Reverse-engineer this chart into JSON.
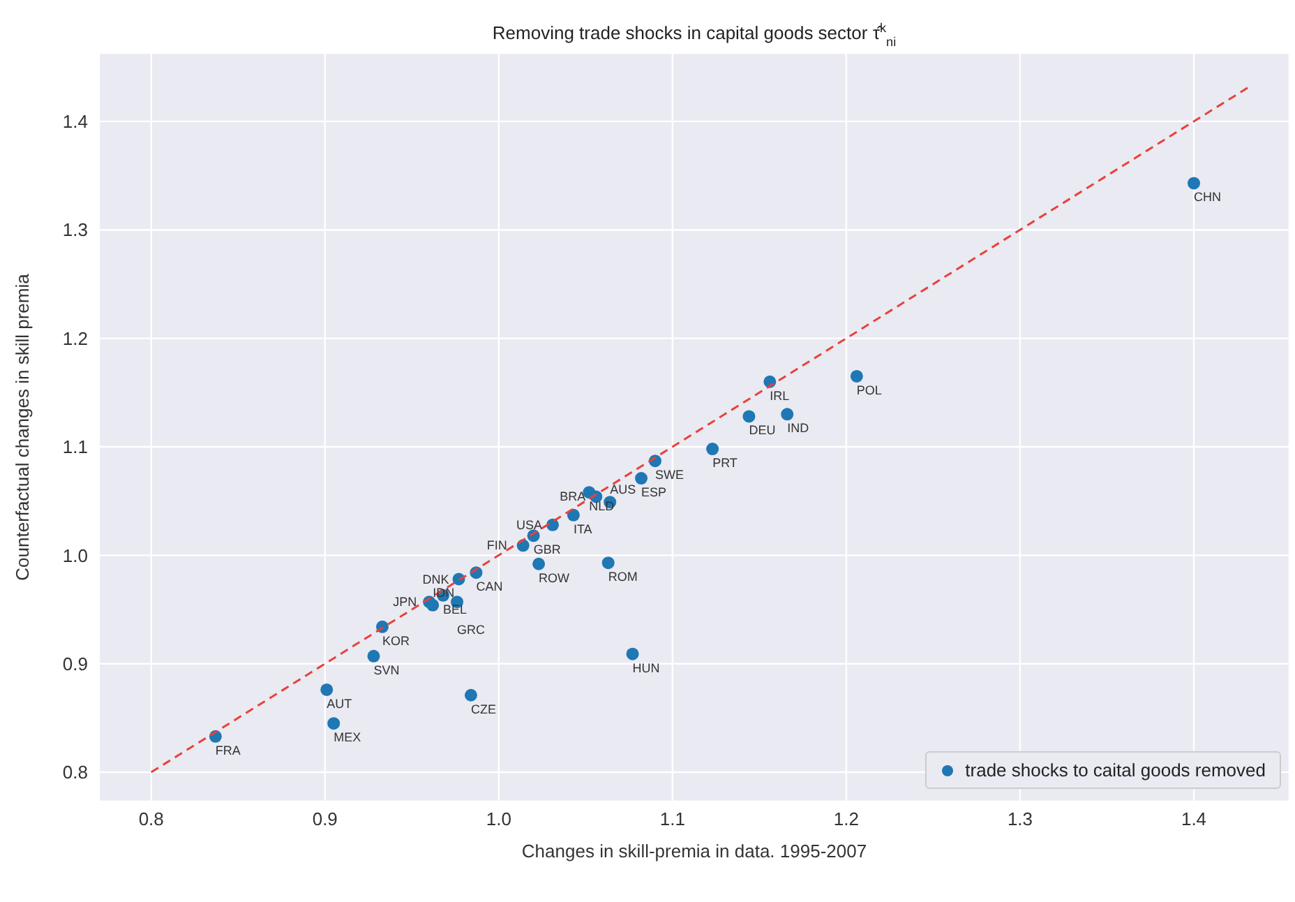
{
  "chart_data": {
    "type": "scatter",
    "title": "Removing trade shocks in capital goods sector τ̂$^{k}$$_{ni}$",
    "xlabel": "Changes in skill-premia in data. 1995-2007",
    "ylabel": "Counterfactual changes in skill premia",
    "xlim": [
      0.77,
      1.455
    ],
    "xticks": [
      0.8,
      0.9,
      {
        "value": 1,
        "label": "1.0"
      },
      1.1,
      1.2,
      1.3,
      1.4
    ],
    "ylim": [
      0.773,
      1.463
    ],
    "yticks": [
      0.8,
      0.9,
      {
        "value": 1,
        "label": "1.0"
      },
      1.1,
      1.2,
      1.3,
      1.4
    ],
    "grid": true,
    "legend": "bottom right",
    "marker": "circle",
    "series": [
      {
        "name": "trade shocks to caital goods removed",
        "color": "#1f77b4",
        "x": [
          1.4,
          1.206,
          1.156,
          1.144,
          1.166,
          1.123,
          1.09,
          1.082,
          1.052,
          1.056,
          1.064,
          1.043,
          1.031,
          1.02,
          1.014,
          1.023,
          1.063,
          1.077,
          0.987,
          0.977,
          0.968,
          0.976,
          0.96,
          0.962,
          0.933,
          0.928,
          0.984,
          0.901,
          0.905,
          0.837
        ],
        "values": [
          1.343,
          1.165,
          1.16,
          1.128,
          1.13,
          1.098,
          1.087,
          1.071,
          1.058,
          1.054,
          1.049,
          1.037,
          1.028,
          1.018,
          1.009,
          0.992,
          0.993,
          0.909,
          0.984,
          0.978,
          0.963,
          0.957,
          0.957,
          0.954,
          0.934,
          0.907,
          0.871,
          0.876,
          0.845,
          0.833
        ]
      },
      {
        "type": "line",
        "color": "#e8413b",
        "line_style": "dashed",
        "marker": "none",
        "x": [
          0.8,
          1.433
        ],
        "values": [
          0.8,
          1.433
        ]
      }
    ],
    "annotations": [
      {
        "text": "CHN",
        "x": 1.4,
        "y": 1.343
      },
      {
        "text": "POL",
        "x": 1.206,
        "y": 1.165
      },
      {
        "text": "IRL",
        "x": 1.156,
        "y": 1.16
      },
      {
        "text": "DEU",
        "x": 1.144,
        "y": 1.128
      },
      {
        "text": "IND",
        "x": 1.166,
        "y": 1.13
      },
      {
        "text": "PRT",
        "x": 1.123,
        "y": 1.098
      },
      {
        "text": "SWE",
        "x": 1.09,
        "y": 1.087
      },
      {
        "text": "ESP",
        "x": 1.082,
        "y": 1.071
      },
      {
        "text": "NLD",
        "x": 1.052,
        "y": 1.058
      },
      {
        "text": "BRA",
        "x": 1.056,
        "y": 1.054
      },
      {
        "text": "AUS",
        "x": 1.064,
        "y": 1.049
      },
      {
        "text": "ITA",
        "x": 1.043,
        "y": 1.037
      },
      {
        "text": "USA",
        "x": 1.031,
        "y": 1.028
      },
      {
        "text": "GBR",
        "x": 1.02,
        "y": 1.018
      },
      {
        "text": "FIN",
        "x": 1.014,
        "y": 1.009
      },
      {
        "text": "ROW",
        "x": 1.023,
        "y": 0.992
      },
      {
        "text": "ROM",
        "x": 1.063,
        "y": 0.993
      },
      {
        "text": "HUN",
        "x": 1.077,
        "y": 0.909
      },
      {
        "text": "CAN",
        "x": 0.987,
        "y": 0.984
      },
      {
        "text": "DNK",
        "x": 0.977,
        "y": 0.978
      },
      {
        "text": "BEL",
        "x": 0.968,
        "y": 0.963
      },
      {
        "text": "GRC",
        "x": 0.976,
        "y": 0.957
      },
      {
        "text": "JPN",
        "x": 0.96,
        "y": 0.957
      },
      {
        "text": "IDN",
        "x": 0.962,
        "y": 0.954
      },
      {
        "text": "KOR",
        "x": 0.933,
        "y": 0.934
      },
      {
        "text": "SVN",
        "x": 0.928,
        "y": 0.907
      },
      {
        "text": "CZE",
        "x": 0.984,
        "y": 0.871
      },
      {
        "text": "AUT",
        "x": 0.901,
        "y": 0.876
      },
      {
        "text": "MEX",
        "x": 0.905,
        "y": 0.845
      },
      {
        "text": "FRA",
        "x": 0.837,
        "y": 0.833
      }
    ]
  }
}
